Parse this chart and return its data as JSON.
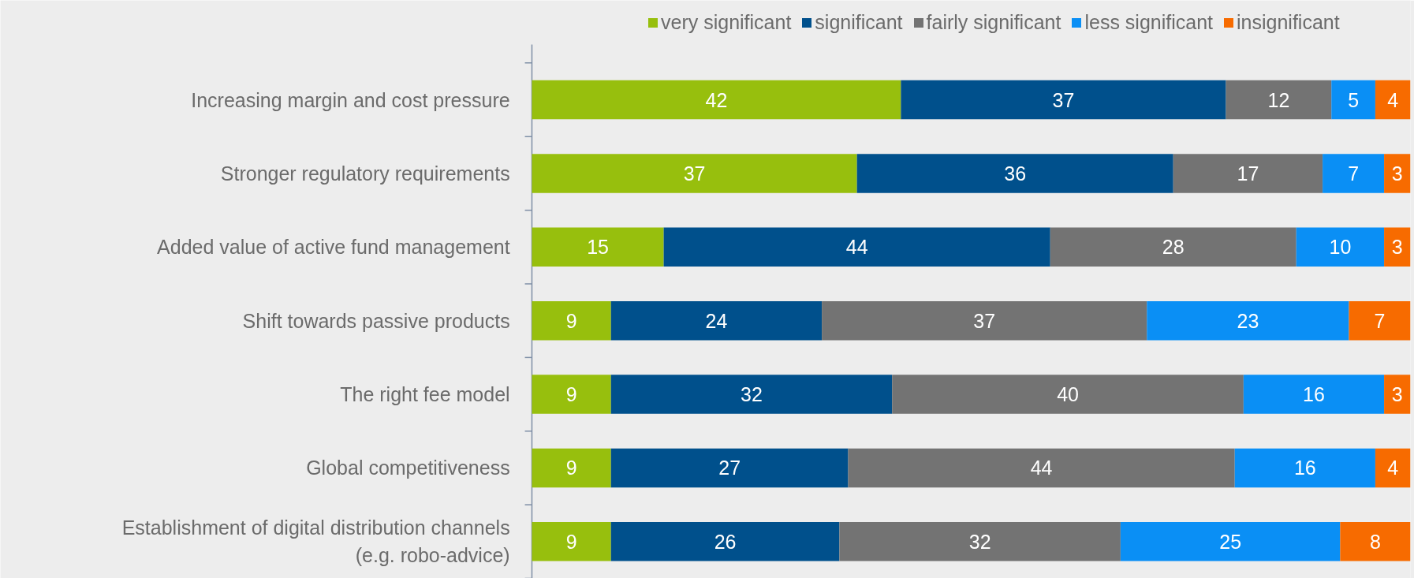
{
  "chart_data": {
    "type": "bar",
    "orientation": "horizontal",
    "stacked": true,
    "data_labels": true,
    "legend": "top",
    "grid": false,
    "tick_labels": "y",
    "xlim": [
      0,
      100
    ],
    "categories": [
      "Increasing margin and cost pressure",
      "Stronger regulatory requirements",
      "Added value of active fund management",
      "Shift towards passive products",
      "The right fee model",
      "Global competitiveness",
      "Establishment of digital distribution channels\n(e.g. robo-advice)"
    ],
    "series": [
      {
        "name": "very significant",
        "color": "#97bf0d",
        "values": [
          42,
          37,
          15,
          9,
          9,
          9,
          9
        ]
      },
      {
        "name": "significant",
        "color": "#00508c",
        "values": [
          37,
          36,
          44,
          24,
          32,
          27,
          26
        ]
      },
      {
        "name": "fairly significant",
        "color": "#737373",
        "values": [
          12,
          17,
          28,
          37,
          40,
          44,
          32
        ]
      },
      {
        "name": "less significant",
        "color": "#0a8ff5",
        "values": [
          5,
          7,
          10,
          23,
          16,
          16,
          25
        ]
      },
      {
        "name": "insignificant",
        "color": "#f76b00",
        "values": [
          4,
          3,
          3,
          7,
          3,
          4,
          8
        ]
      }
    ]
  }
}
